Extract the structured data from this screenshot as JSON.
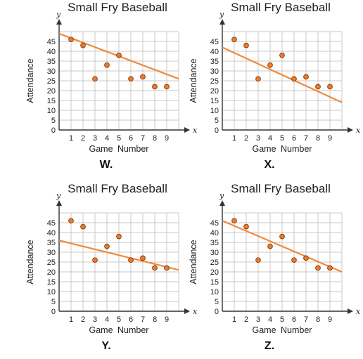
{
  "chart_data": [
    {
      "type": "scatter",
      "label": "W.",
      "title": "Small Fry Baseball",
      "xlabel": "Game Number",
      "ylabel": "Attendance",
      "x_var": "x",
      "y_var": "y",
      "xlim": [
        0,
        10
      ],
      "ylim": [
        0,
        50
      ],
      "x_ticks": [
        "1",
        "2",
        "3",
        "4",
        "5",
        "6",
        "7",
        "8",
        "9"
      ],
      "y_ticks": [
        "0",
        "5",
        "10",
        "15",
        "20",
        "25",
        "30",
        "35",
        "40",
        "45"
      ],
      "points": [
        [
          1,
          46
        ],
        [
          2,
          43
        ],
        [
          3,
          26
        ],
        [
          4,
          33
        ],
        [
          5,
          38
        ],
        [
          6,
          26
        ],
        [
          7,
          27
        ],
        [
          8,
          22
        ],
        [
          9,
          22
        ]
      ],
      "fit_line": [
        [
          0,
          49
        ],
        [
          10,
          26
        ]
      ],
      "grid": true
    },
    {
      "type": "scatter",
      "label": "X.",
      "title": "Small Fry Baseball",
      "xlabel": "Game Number",
      "ylabel": "Attendance",
      "x_var": "x",
      "y_var": "y",
      "xlim": [
        0,
        10
      ],
      "ylim": [
        0,
        50
      ],
      "x_ticks": [
        "1",
        "2",
        "3",
        "4",
        "5",
        "6",
        "7",
        "8",
        "9"
      ],
      "y_ticks": [
        "0",
        "5",
        "10",
        "15",
        "20",
        "25",
        "30",
        "35",
        "40",
        "45"
      ],
      "points": [
        [
          1,
          46
        ],
        [
          2,
          43
        ],
        [
          3,
          26
        ],
        [
          4,
          33
        ],
        [
          5,
          38
        ],
        [
          6,
          26
        ],
        [
          7,
          27
        ],
        [
          8,
          22
        ],
        [
          9,
          22
        ]
      ],
      "fit_line": [
        [
          0,
          42
        ],
        [
          10,
          14
        ]
      ],
      "grid": true
    },
    {
      "type": "scatter",
      "label": "Y.",
      "title": "Small Fry Baseball",
      "xlabel": "Game Number",
      "ylabel": "Attendance",
      "x_var": "x",
      "y_var": "y",
      "xlim": [
        0,
        10
      ],
      "ylim": [
        0,
        50
      ],
      "x_ticks": [
        "1",
        "2",
        "3",
        "4",
        "5",
        "6",
        "7",
        "8",
        "9"
      ],
      "y_ticks": [
        "0",
        "5",
        "10",
        "15",
        "20",
        "25",
        "30",
        "35",
        "40",
        "45"
      ],
      "points": [
        [
          1,
          46
        ],
        [
          2,
          43
        ],
        [
          3,
          26
        ],
        [
          4,
          33
        ],
        [
          5,
          38
        ],
        [
          6,
          26
        ],
        [
          7,
          27
        ],
        [
          8,
          22
        ],
        [
          9,
          22
        ]
      ],
      "fit_line": [
        [
          0,
          36
        ],
        [
          10,
          21
        ]
      ],
      "grid": true
    },
    {
      "type": "scatter",
      "label": "Z.",
      "title": "Small Fry Baseball",
      "xlabel": "Game Number",
      "ylabel": "Attendance",
      "x_var": "x",
      "y_var": "y",
      "xlim": [
        0,
        10
      ],
      "ylim": [
        0,
        50
      ],
      "x_ticks": [
        "1",
        "2",
        "3",
        "4",
        "5",
        "6",
        "7",
        "8",
        "9"
      ],
      "y_ticks": [
        "0",
        "5",
        "10",
        "15",
        "20",
        "25",
        "30",
        "35",
        "40",
        "45"
      ],
      "points": [
        [
          1,
          46
        ],
        [
          2,
          43
        ],
        [
          3,
          26
        ],
        [
          4,
          33
        ],
        [
          5,
          38
        ],
        [
          6,
          26
        ],
        [
          7,
          27
        ],
        [
          8,
          22
        ],
        [
          9,
          22
        ]
      ],
      "fit_line": [
        [
          0,
          46
        ],
        [
          10,
          20
        ]
      ],
      "grid": true
    }
  ],
  "colors": {
    "point_fill": "#f07a2a",
    "point_stroke": "#7a3a10",
    "fit_line": "#ef8a3a",
    "grid": "#c9c9c9",
    "axis": "#333333"
  }
}
